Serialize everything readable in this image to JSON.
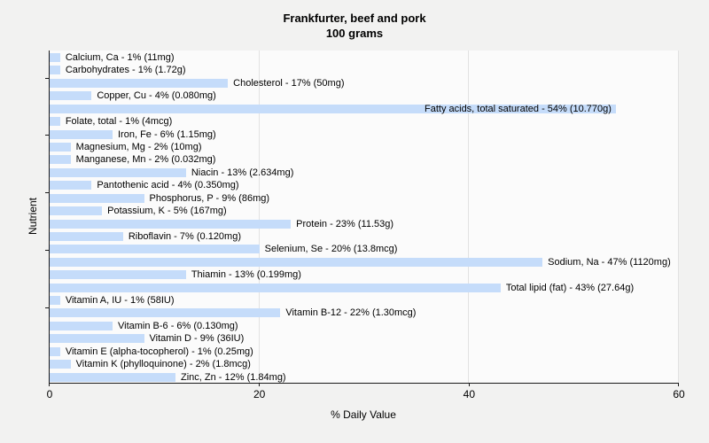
{
  "title": {
    "line1": "Frankfurter, beef and pork",
    "line2": "100 grams"
  },
  "axes": {
    "xlabel": "% Daily Value",
    "ylabel": "Nutrient"
  },
  "chart_data": {
    "type": "bar",
    "orientation": "horizontal",
    "title": "Frankfurter, beef and pork",
    "subtitle": "100 grams",
    "xlabel": "% Daily Value",
    "ylabel": "Nutrient",
    "xlim": [
      0,
      60
    ],
    "x_ticks": [
      0,
      20,
      40,
      60
    ],
    "grid": "faint vertical gridlines at 20, 40, 60",
    "legend_position": "none",
    "bar_color": "#c5dcfa",
    "plot_background": "#fbfbfb",
    "page_background": "#f2f2f1",
    "bars": [
      {
        "nutrient": "Calcium, Ca",
        "percent_daily_value": 1,
        "amount": "11mg",
        "label": "Calcium, Ca - 1% (11mg)"
      },
      {
        "nutrient": "Carbohydrates",
        "percent_daily_value": 1,
        "amount": "1.72g",
        "label": "Carbohydrates - 1% (1.72g)"
      },
      {
        "nutrient": "Cholesterol",
        "percent_daily_value": 17,
        "amount": "50mg",
        "label": "Cholesterol - 17% (50mg)"
      },
      {
        "nutrient": "Copper, Cu",
        "percent_daily_value": 4,
        "amount": "0.080mg",
        "label": "Copper, Cu - 4% (0.080mg)"
      },
      {
        "nutrient": "Fatty acids, total saturated",
        "percent_daily_value": 54,
        "amount": "10.770g",
        "label": "Fatty acids, total saturated - 54% (10.770g)"
      },
      {
        "nutrient": "Folate, total",
        "percent_daily_value": 1,
        "amount": "4mcg",
        "label": "Folate, total - 1% (4mcg)"
      },
      {
        "nutrient": "Iron, Fe",
        "percent_daily_value": 6,
        "amount": "1.15mg",
        "label": "Iron, Fe - 6% (1.15mg)"
      },
      {
        "nutrient": "Magnesium, Mg",
        "percent_daily_value": 2,
        "amount": "10mg",
        "label": "Magnesium, Mg - 2% (10mg)"
      },
      {
        "nutrient": "Manganese, Mn",
        "percent_daily_value": 2,
        "amount": "0.032mg",
        "label": "Manganese, Mn - 2% (0.032mg)"
      },
      {
        "nutrient": "Niacin",
        "percent_daily_value": 13,
        "amount": "2.634mg",
        "label": "Niacin - 13% (2.634mg)"
      },
      {
        "nutrient": "Pantothenic acid",
        "percent_daily_value": 4,
        "amount": "0.350mg",
        "label": "Pantothenic acid - 4% (0.350mg)"
      },
      {
        "nutrient": "Phosphorus, P",
        "percent_daily_value": 9,
        "amount": "86mg",
        "label": "Phosphorus, P - 9% (86mg)"
      },
      {
        "nutrient": "Potassium, K",
        "percent_daily_value": 5,
        "amount": "167mg",
        "label": "Potassium, K - 5% (167mg)"
      },
      {
        "nutrient": "Protein",
        "percent_daily_value": 23,
        "amount": "11.53g",
        "label": "Protein - 23% (11.53g)"
      },
      {
        "nutrient": "Riboflavin",
        "percent_daily_value": 7,
        "amount": "0.120mg",
        "label": "Riboflavin - 7% (0.120mg)"
      },
      {
        "nutrient": "Selenium, Se",
        "percent_daily_value": 20,
        "amount": "13.8mcg",
        "label": "Selenium, Se - 20% (13.8mcg)"
      },
      {
        "nutrient": "Sodium, Na",
        "percent_daily_value": 47,
        "amount": "1120mg",
        "label": "Sodium, Na - 47% (1120mg)"
      },
      {
        "nutrient": "Thiamin",
        "percent_daily_value": 13,
        "amount": "0.199mg",
        "label": "Thiamin - 13% (0.199mg)"
      },
      {
        "nutrient": "Total lipid (fat)",
        "percent_daily_value": 43,
        "amount": "27.64g",
        "label": "Total lipid (fat) - 43% (27.64g)"
      },
      {
        "nutrient": "Vitamin A, IU",
        "percent_daily_value": 1,
        "amount": "58IU",
        "label": "Vitamin A, IU - 1% (58IU)"
      },
      {
        "nutrient": "Vitamin B-12",
        "percent_daily_value": 22,
        "amount": "1.30mcg",
        "label": "Vitamin B-12 - 22% (1.30mcg)"
      },
      {
        "nutrient": "Vitamin B-6",
        "percent_daily_value": 6,
        "amount": "0.130mg",
        "label": "Vitamin B-6 - 6% (0.130mg)"
      },
      {
        "nutrient": "Vitamin D",
        "percent_daily_value": 9,
        "amount": "36IU",
        "label": "Vitamin D - 9% (36IU)"
      },
      {
        "nutrient": "Vitamin E (alpha-tocopherol)",
        "percent_daily_value": 1,
        "amount": "0.25mg",
        "label": "Vitamin E (alpha-tocopherol) - 1% (0.25mg)"
      },
      {
        "nutrient": "Vitamin K (phylloquinone)",
        "percent_daily_value": 2,
        "amount": "1.8mcg",
        "label": "Vitamin K (phylloquinone) - 2% (1.8mcg)"
      },
      {
        "nutrient": "Zinc, Zn",
        "percent_daily_value": 12,
        "amount": "1.84mg",
        "label": "Zinc, Zn - 12% (1.84mg)"
      }
    ]
  }
}
